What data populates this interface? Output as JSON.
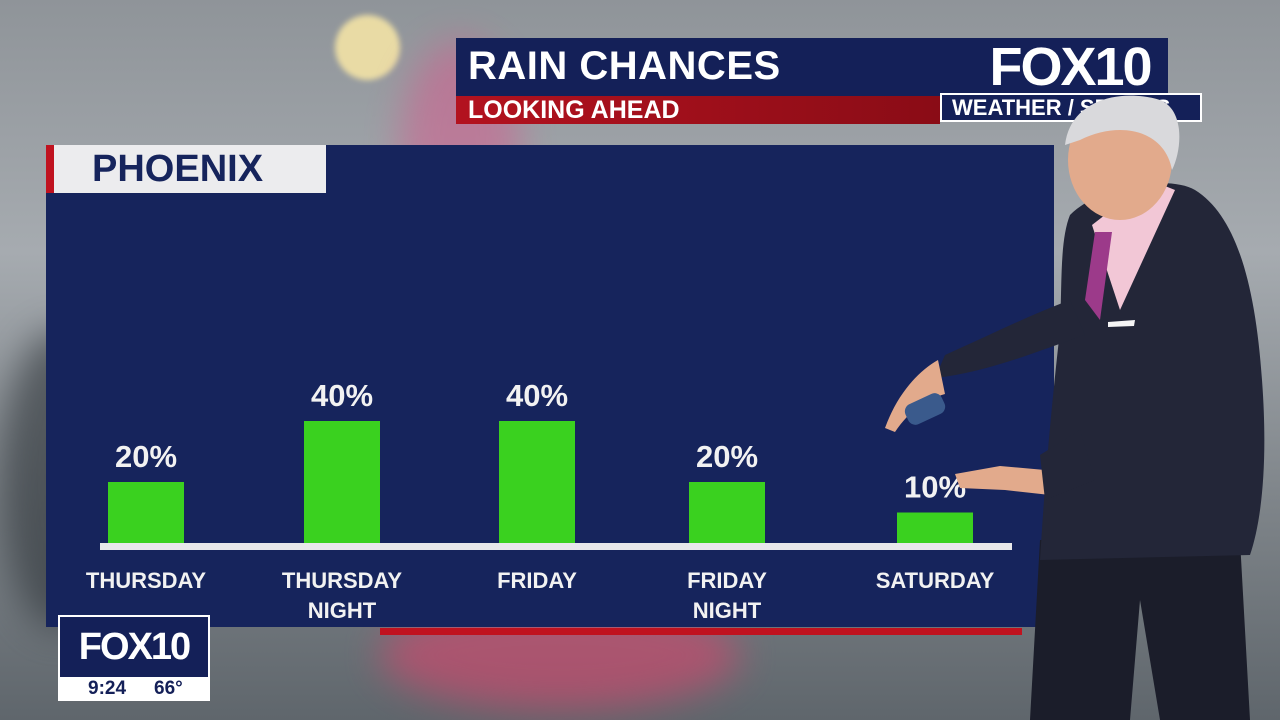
{
  "header": {
    "title": "RAIN CHANCES",
    "subtitle": "LOOKING AHEAD"
  },
  "brand": {
    "logo": "FOX10",
    "strip": "WEATHER / SPORTS"
  },
  "location": "PHOENIX",
  "bug": {
    "logo": "FOX10",
    "time": "9:24",
    "temp": "66°"
  },
  "colors": {
    "bar": "#3ad11f",
    "panel": "#16245c",
    "accent_red": "#c0121f",
    "axis": "#e8e8ea"
  },
  "chart_data": {
    "type": "bar",
    "title": "RAIN CHANCES",
    "categories": [
      [
        "THURSDAY"
      ],
      [
        "THURSDAY",
        "NIGHT"
      ],
      [
        "FRIDAY"
      ],
      [
        "FRIDAY",
        "NIGHT"
      ],
      [
        "SATURDAY"
      ]
    ],
    "values": [
      20,
      40,
      40,
      20,
      10
    ],
    "value_labels": [
      "20%",
      "40%",
      "40%",
      "20%",
      "10%"
    ],
    "unit": "%",
    "ylim": [
      0,
      40
    ],
    "grid": false
  }
}
